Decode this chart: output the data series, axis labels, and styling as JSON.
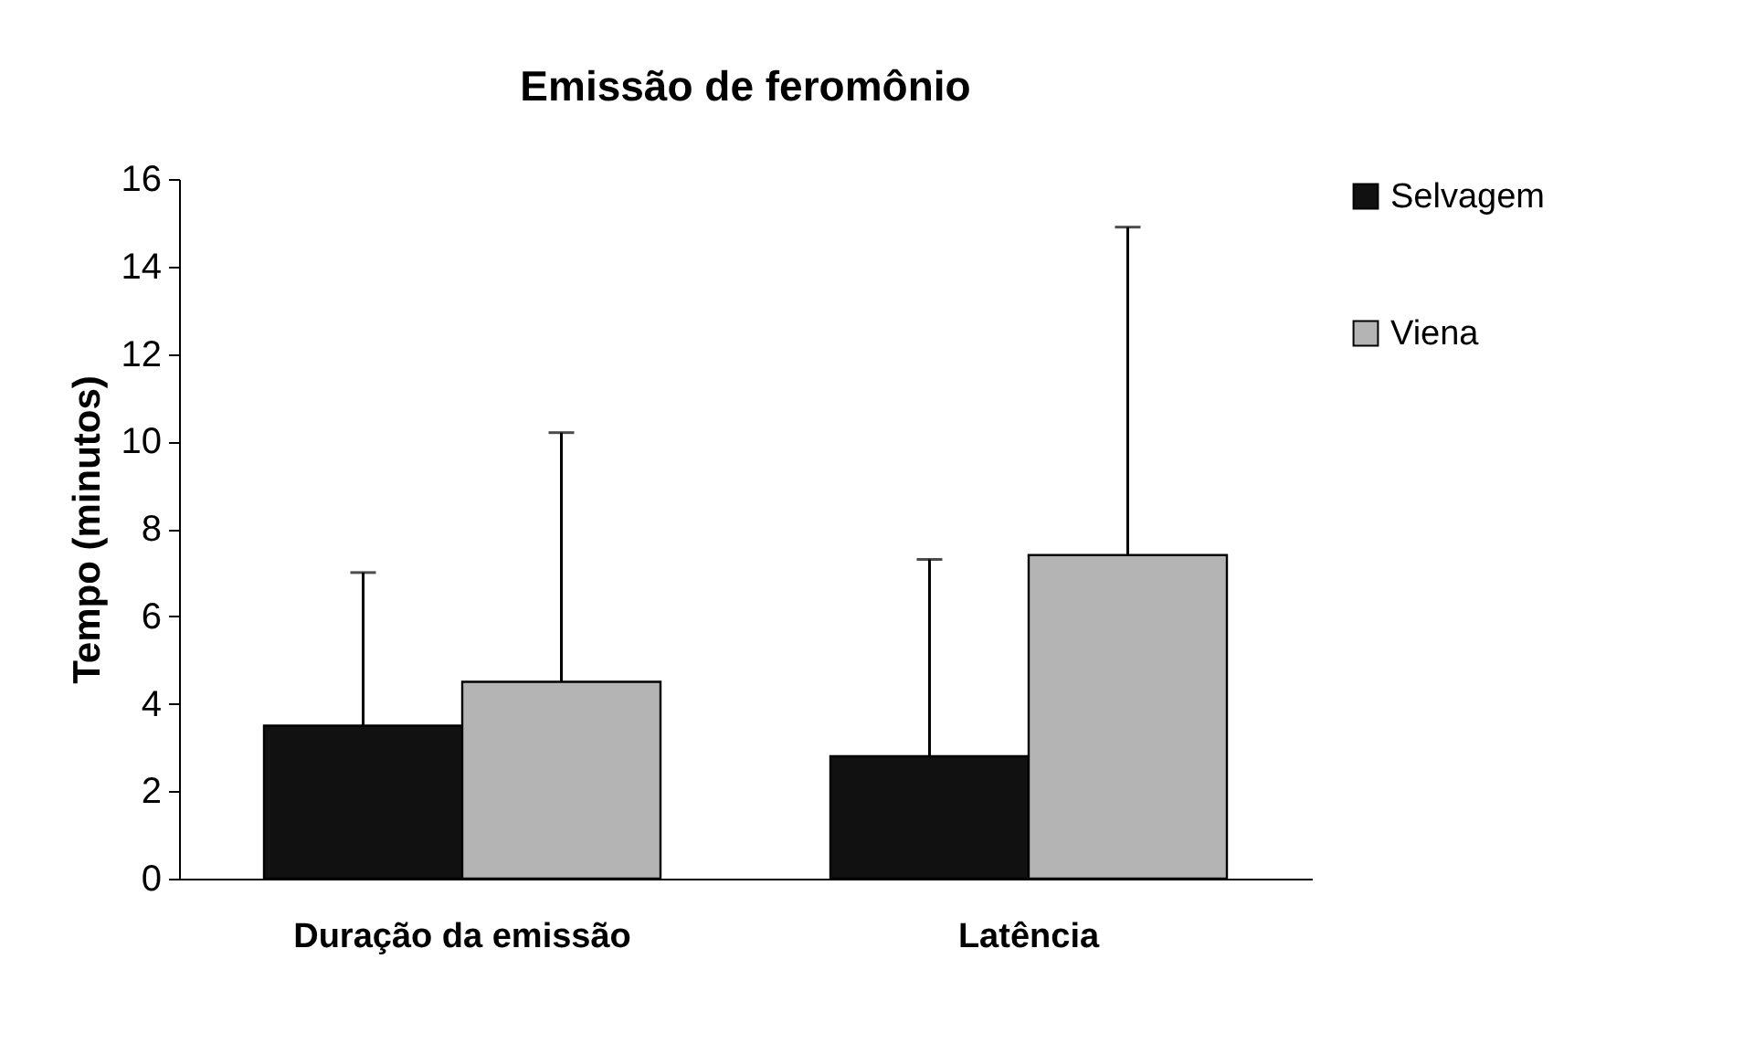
{
  "chart_data": {
    "type": "bar",
    "title": "Emissão de feromônio",
    "ylabel": "Tempo (minutos)",
    "categories": [
      "Duração da emissão",
      "Latência"
    ],
    "series": [
      {
        "name": "Selvagem",
        "color": "#111111",
        "values": [
          3.5,
          2.8
        ],
        "errors": [
          [
            3.5,
            7.0
          ],
          [
            2.8,
            7.3
          ]
        ]
      },
      {
        "name": "Viena",
        "color": "#b4b4b4",
        "values": [
          4.5,
          7.4
        ],
        "errors": [
          [
            4.5,
            10.2
          ],
          [
            7.4,
            14.9
          ]
        ]
      }
    ],
    "ylim": [
      0,
      16
    ],
    "yticks": [
      0,
      2,
      4,
      6,
      8,
      10,
      12,
      14,
      16
    ],
    "grid": false,
    "legend": "right"
  }
}
